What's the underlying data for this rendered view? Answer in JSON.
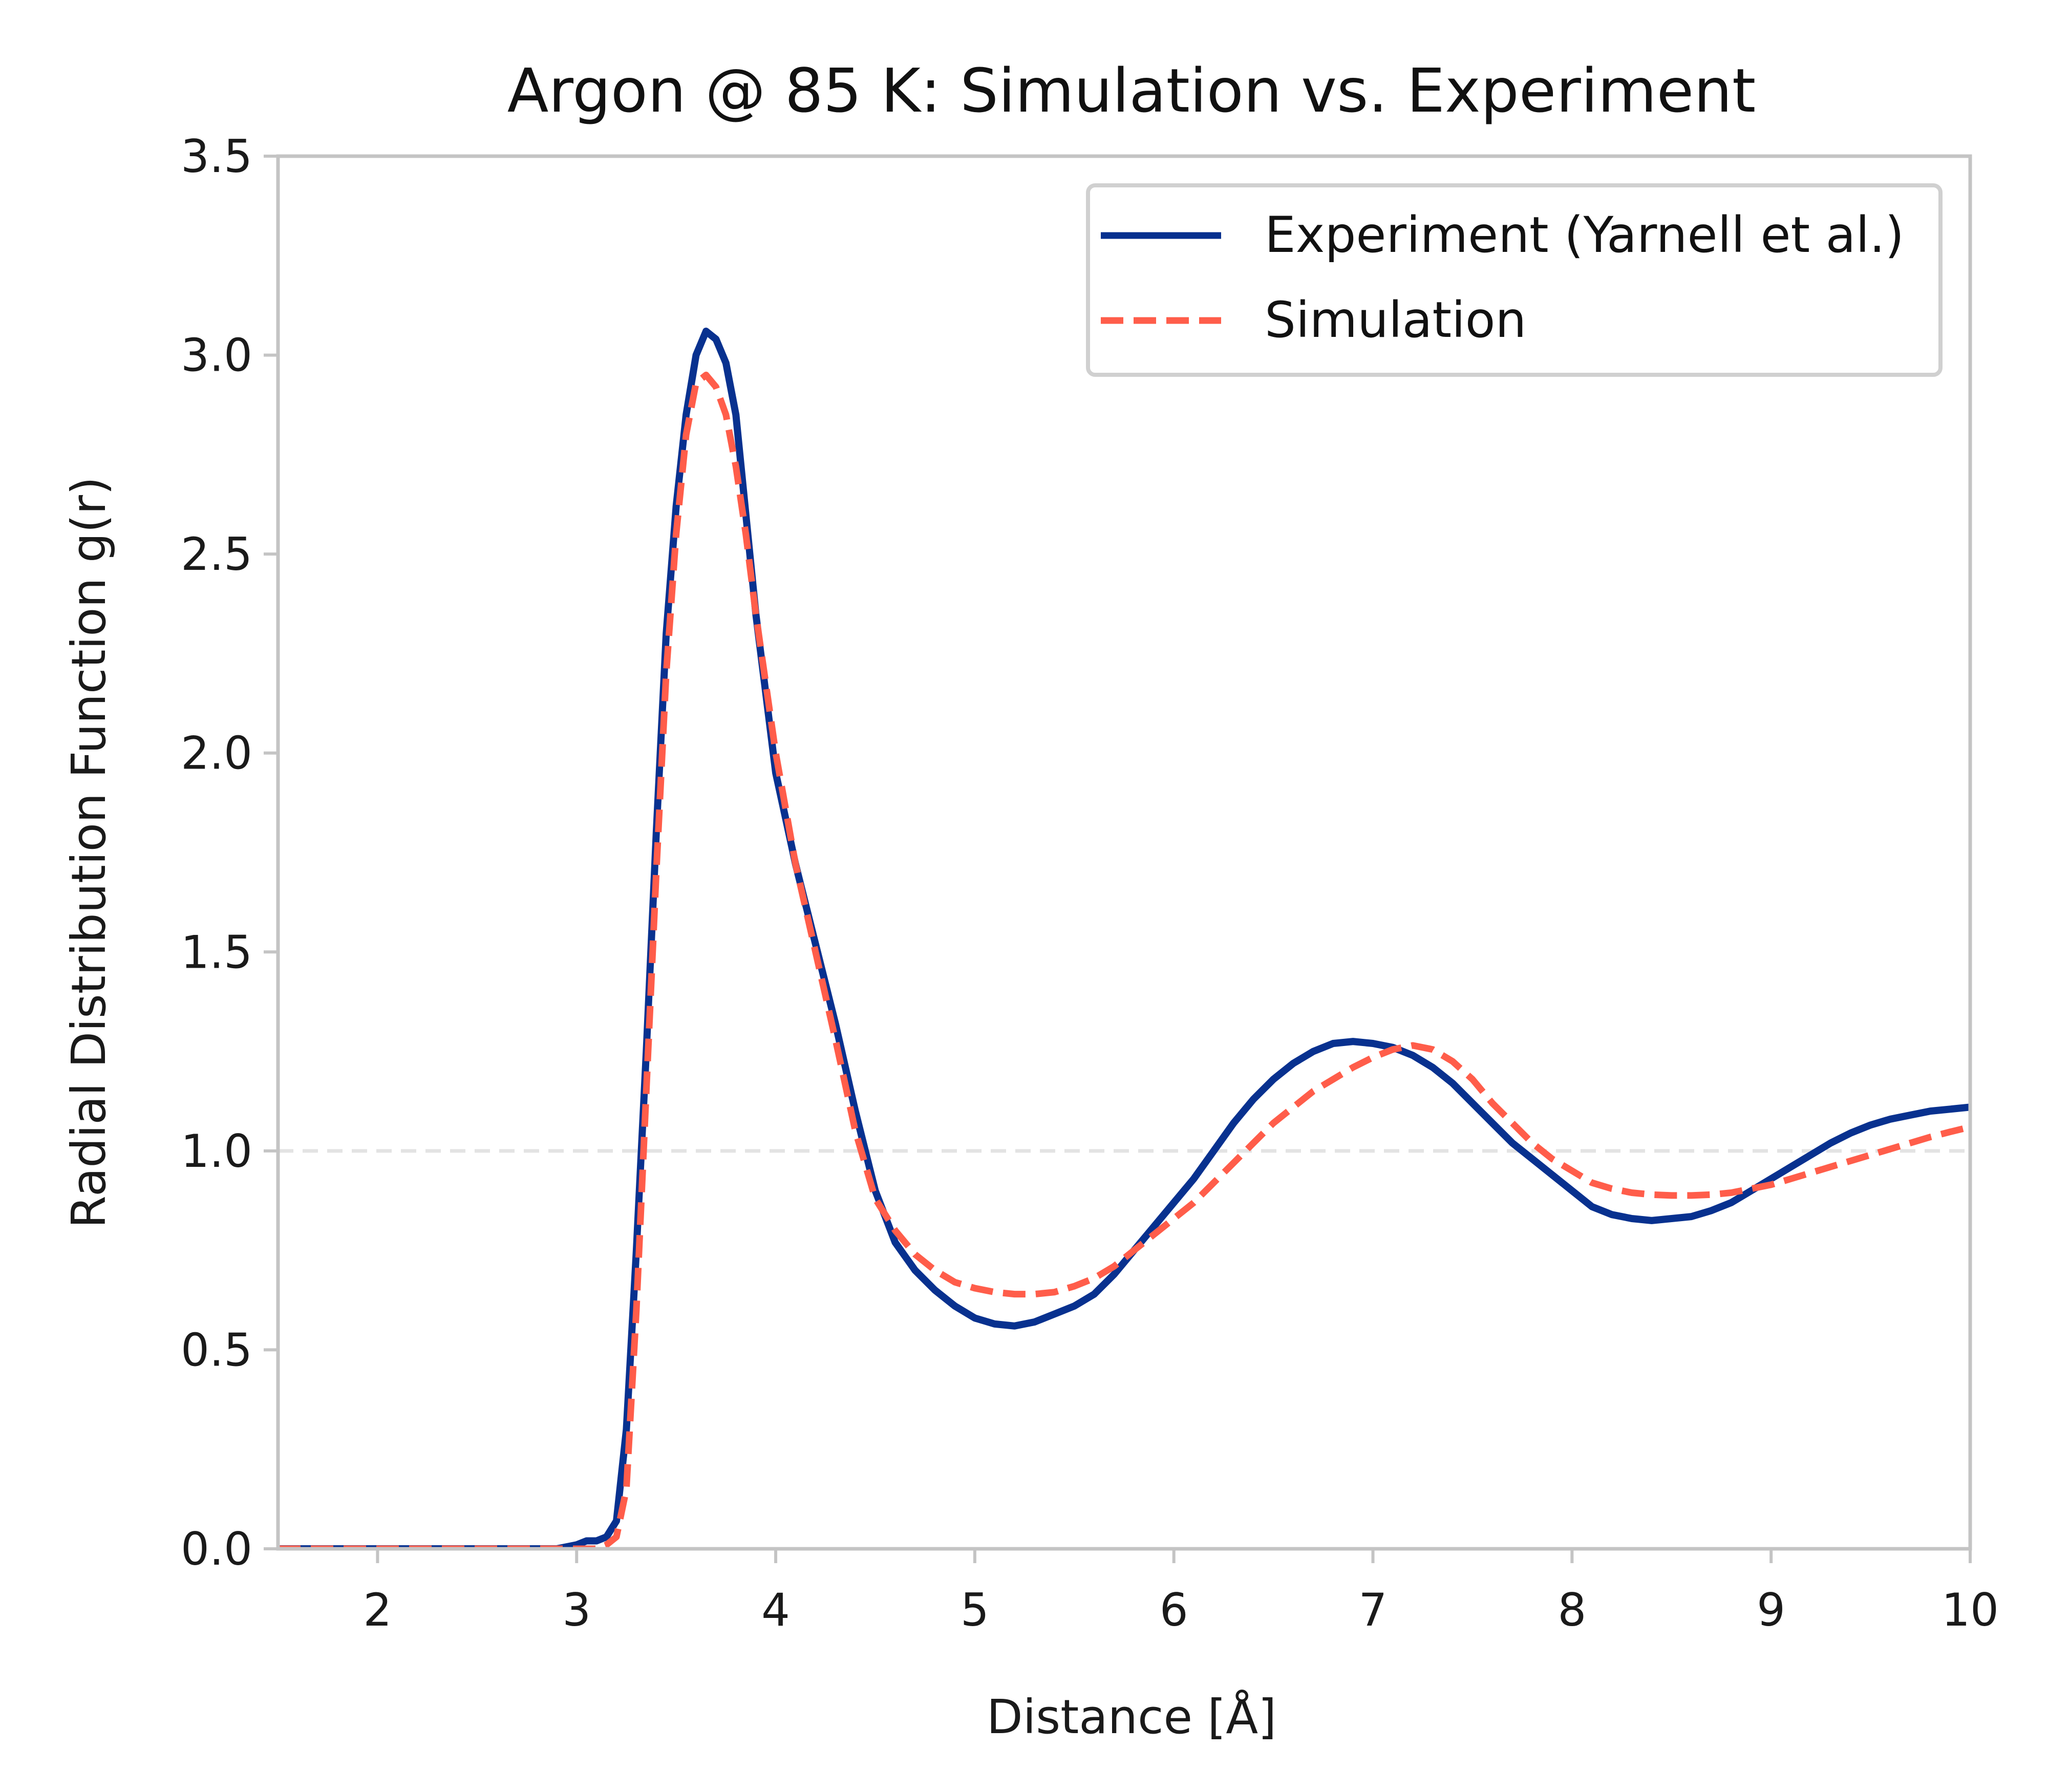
{
  "chart_data": {
    "type": "line",
    "title": "Argon @ 85 K: Simulation vs. Experiment",
    "xlabel": "Distance [Å]",
    "ylabel": "Radial Distribution Function g(r)",
    "xlim": [
      1.5,
      10
    ],
    "ylim": [
      0,
      3.5
    ],
    "xticks": [
      "2",
      "3",
      "4",
      "5",
      "6",
      "7",
      "8",
      "9",
      "10"
    ],
    "yticks": [
      "0.0",
      "0.5",
      "1.0",
      "1.5",
      "2.0",
      "2.5",
      "3.0",
      "3.5"
    ],
    "reference_line": {
      "y": 1.0,
      "style": "dashed"
    },
    "legend": {
      "position": "top-right"
    },
    "grid": false,
    "series": [
      {
        "name": "Experiment (Yarnell et al.)",
        "color": "#08318f",
        "style": "solid",
        "x": [
          1.5,
          2.0,
          2.5,
          2.9,
          3.0,
          3.05,
          3.1,
          3.15,
          3.2,
          3.25,
          3.3,
          3.35,
          3.4,
          3.45,
          3.5,
          3.55,
          3.6,
          3.65,
          3.7,
          3.75,
          3.8,
          3.85,
          3.9,
          4.0,
          4.1,
          4.2,
          4.3,
          4.4,
          4.5,
          4.6,
          4.7,
          4.8,
          4.9,
          5.0,
          5.1,
          5.2,
          5.3,
          5.4,
          5.5,
          5.6,
          5.7,
          5.8,
          5.9,
          6.0,
          6.1,
          6.2,
          6.3,
          6.4,
          6.5,
          6.6,
          6.7,
          6.8,
          6.9,
          7.0,
          7.1,
          7.2,
          7.3,
          7.4,
          7.5,
          7.6,
          7.7,
          7.8,
          7.9,
          8.0,
          8.1,
          8.2,
          8.3,
          8.4,
          8.5,
          8.6,
          8.7,
          8.8,
          8.9,
          9.0,
          9.1,
          9.2,
          9.3,
          9.4,
          9.5,
          9.6,
          9.7,
          9.8,
          9.9,
          10.0
        ],
        "y": [
          0.0,
          0.0,
          0.0,
          0.0,
          0.01,
          0.02,
          0.02,
          0.03,
          0.07,
          0.3,
          0.75,
          1.25,
          1.8,
          2.3,
          2.62,
          2.85,
          3.0,
          3.06,
          3.04,
          2.98,
          2.85,
          2.6,
          2.35,
          1.95,
          1.72,
          1.52,
          1.32,
          1.1,
          0.9,
          0.77,
          0.7,
          0.65,
          0.61,
          0.58,
          0.565,
          0.56,
          0.57,
          0.59,
          0.61,
          0.64,
          0.69,
          0.75,
          0.81,
          0.87,
          0.93,
          1.0,
          1.07,
          1.13,
          1.18,
          1.22,
          1.25,
          1.27,
          1.275,
          1.27,
          1.26,
          1.24,
          1.21,
          1.17,
          1.12,
          1.07,
          1.02,
          0.98,
          0.94,
          0.9,
          0.86,
          0.84,
          0.83,
          0.825,
          0.83,
          0.835,
          0.85,
          0.87,
          0.9,
          0.93,
          0.96,
          0.99,
          1.02,
          1.045,
          1.065,
          1.08,
          1.09,
          1.1,
          1.105,
          1.11
        ]
      },
      {
        "name": "Simulation",
        "color": "#ff5d4a",
        "style": "dashed",
        "x": [
          1.5,
          2.0,
          2.5,
          3.0,
          3.1,
          3.15,
          3.2,
          3.25,
          3.3,
          3.35,
          3.4,
          3.45,
          3.5,
          3.55,
          3.6,
          3.65,
          3.7,
          3.75,
          3.8,
          3.85,
          3.9,
          4.0,
          4.1,
          4.2,
          4.3,
          4.4,
          4.5,
          4.6,
          4.7,
          4.8,
          4.9,
          5.0,
          5.1,
          5.2,
          5.3,
          5.4,
          5.5,
          5.6,
          5.7,
          5.8,
          5.9,
          6.0,
          6.1,
          6.2,
          6.3,
          6.4,
          6.5,
          6.6,
          6.7,
          6.8,
          6.9,
          7.0,
          7.1,
          7.2,
          7.3,
          7.4,
          7.5,
          7.6,
          7.7,
          7.8,
          7.9,
          8.0,
          8.1,
          8.2,
          8.3,
          8.4,
          8.5,
          8.6,
          8.7,
          8.8,
          8.9,
          9.0,
          9.1,
          9.2,
          9.3,
          9.4,
          9.5,
          9.6,
          9.7,
          9.8,
          9.9,
          10.0
        ],
        "y": [
          0.0,
          0.0,
          0.0,
          0.0,
          0.0,
          0.01,
          0.03,
          0.15,
          0.6,
          1.15,
          1.7,
          2.2,
          2.55,
          2.8,
          2.93,
          2.95,
          2.92,
          2.85,
          2.72,
          2.55,
          2.35,
          2.0,
          1.72,
          1.5,
          1.28,
          1.05,
          0.88,
          0.8,
          0.74,
          0.7,
          0.67,
          0.655,
          0.645,
          0.64,
          0.64,
          0.645,
          0.66,
          0.68,
          0.71,
          0.75,
          0.79,
          0.83,
          0.87,
          0.92,
          0.97,
          1.02,
          1.07,
          1.11,
          1.15,
          1.18,
          1.21,
          1.235,
          1.255,
          1.265,
          1.255,
          1.225,
          1.18,
          1.12,
          1.07,
          1.02,
          0.98,
          0.95,
          0.92,
          0.905,
          0.895,
          0.89,
          0.888,
          0.888,
          0.89,
          0.895,
          0.905,
          0.915,
          0.93,
          0.945,
          0.96,
          0.975,
          0.99,
          1.005,
          1.02,
          1.035,
          1.048,
          1.06
        ]
      }
    ]
  }
}
